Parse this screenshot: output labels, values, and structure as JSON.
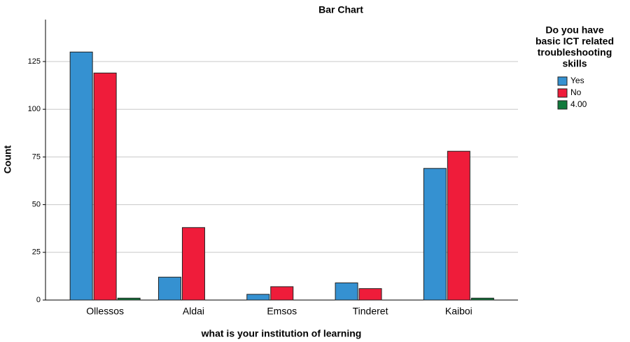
{
  "chart_data": {
    "type": "bar",
    "title": "Bar Chart",
    "x_label": "what is your institution of learning",
    "y_label": "Count",
    "legend_title": [
      "Do you have",
      "basic ICT related",
      "troubleshooting",
      "skills"
    ],
    "categories": [
      "Ollessos",
      "Aldai",
      "Emsos",
      "Tinderet",
      "Kaiboi"
    ],
    "series": [
      {
        "name": "Yes",
        "color": "#3591d1",
        "values": [
          130,
          12,
          3,
          9,
          69
        ]
      },
      {
        "name": "No",
        "color": "#ef1c3a",
        "values": [
          119,
          38,
          7,
          6,
          78
        ]
      },
      {
        "name": "4.00",
        "color": "#117a3c",
        "values": [
          1,
          0,
          0,
          0,
          1
        ]
      }
    ],
    "ylim": [
      0,
      147
    ],
    "yticks": [
      0,
      25,
      50,
      75,
      100,
      125
    ],
    "grid": true,
    "legend": "right"
  }
}
